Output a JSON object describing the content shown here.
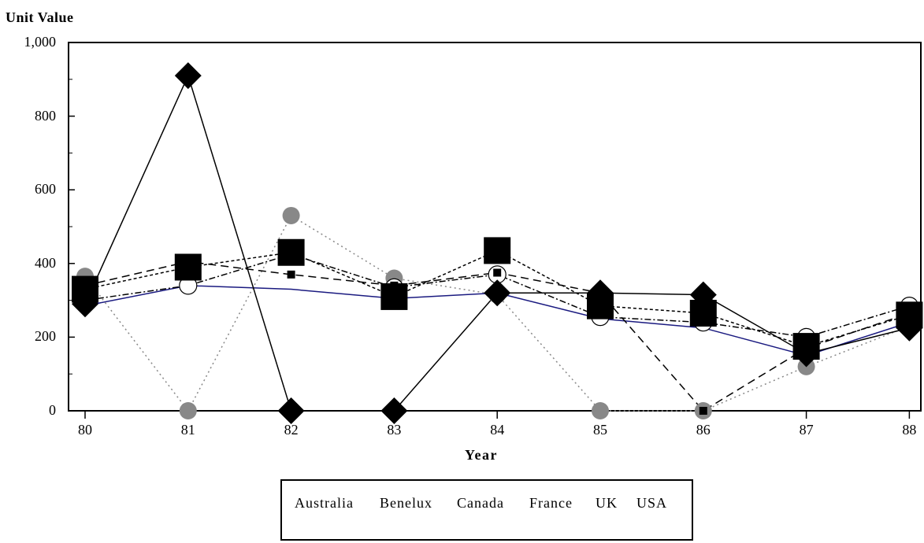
{
  "chart_data": {
    "type": "line",
    "title": "",
    "ylabel": "Unit Value",
    "xlabel": "Year",
    "ylim": [
      0,
      1000
    ],
    "y_ticks": [
      0,
      200,
      400,
      600,
      800,
      1000
    ],
    "y_tick_labels": [
      "0",
      "200",
      "400",
      "600",
      "800",
      "1,000"
    ],
    "categories": [
      "80",
      "81",
      "82",
      "83",
      "84",
      "85",
      "86",
      "87",
      "88"
    ],
    "grid": false,
    "legend_position": "bottom-center",
    "series": [
      {
        "name": "Australia",
        "color": "#1a1a80",
        "dash": "solid",
        "marker": "none",
        "values": [
          285,
          340,
          330,
          305,
          320,
          250,
          225,
          150,
          240
        ]
      },
      {
        "name": "Benelux",
        "color": "#888888",
        "dash": "dotted",
        "marker": "circle-gray",
        "values": [
          365,
          0,
          530,
          360,
          315,
          0,
          0,
          120,
          230
        ]
      },
      {
        "name": "Canada",
        "color": "#000000",
        "dash": "dotdash",
        "marker": "circle-open",
        "values": [
          300,
          340,
          425,
          335,
          370,
          255,
          240,
          200,
          285
        ]
      },
      {
        "name": "France",
        "color": "#000000",
        "dash": "dashed",
        "marker": "square-small",
        "values": [
          340,
          405,
          370,
          340,
          375,
          320,
          0,
          170,
          265
        ]
      },
      {
        "name": "UK",
        "color": "#000000",
        "dash": "shortdash",
        "marker": "square-large",
        "values": [
          330,
          390,
          430,
          310,
          435,
          285,
          265,
          175,
          260
        ]
      },
      {
        "name": "USA",
        "color": "#000000",
        "dash": "solid",
        "marker": "diamond",
        "values": [
          290,
          910,
          0,
          0,
          320,
          320,
          315,
          155,
          225
        ]
      }
    ]
  }
}
